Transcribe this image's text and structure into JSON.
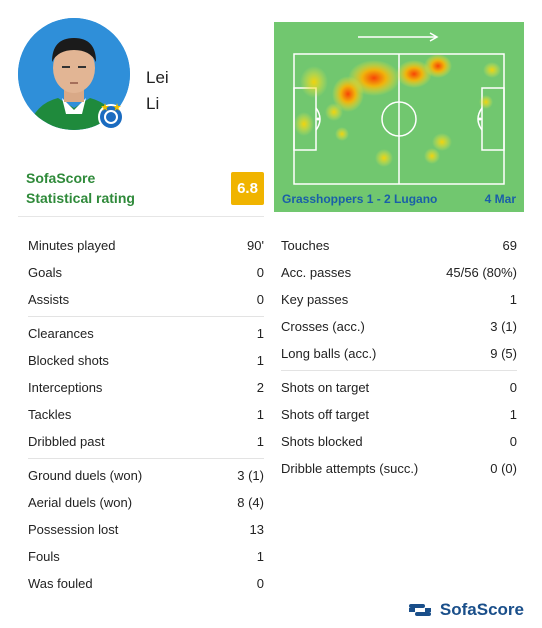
{
  "player": {
    "first_name": "Lei",
    "last_name": "Li"
  },
  "rating": {
    "brand": "SofaScore",
    "label": "Statistical rating",
    "value": "6.8",
    "color": "#f0b400"
  },
  "heatmap": {
    "match": "Grasshoppers 1 - 2 Lugano",
    "date": "4 Mar",
    "pitch_color": "#71c76f"
  },
  "stats_left": [
    [
      {
        "label": "Minutes played",
        "value": "90'"
      },
      {
        "label": "Goals",
        "value": "0"
      },
      {
        "label": "Assists",
        "value": "0"
      }
    ],
    [
      {
        "label": "Clearances",
        "value": "1"
      },
      {
        "label": "Blocked shots",
        "value": "1"
      },
      {
        "label": "Interceptions",
        "value": "2"
      },
      {
        "label": "Tackles",
        "value": "1"
      },
      {
        "label": "Dribbled past",
        "value": "1"
      }
    ],
    [
      {
        "label": "Ground duels (won)",
        "value": "3 (1)"
      },
      {
        "label": "Aerial duels (won)",
        "value": "8 (4)"
      },
      {
        "label": "Possession lost",
        "value": "13"
      },
      {
        "label": "Fouls",
        "value": "1"
      },
      {
        "label": "Was fouled",
        "value": "0"
      }
    ]
  ],
  "stats_right": [
    [
      {
        "label": "Touches",
        "value": "69"
      },
      {
        "label": "Acc. passes",
        "value": "45/56 (80%)"
      },
      {
        "label": "Key passes",
        "value": "1"
      },
      {
        "label": "Crosses (acc.)",
        "value": "3 (1)"
      },
      {
        "label": "Long balls (acc.)",
        "value": "9 (5)"
      }
    ],
    [
      {
        "label": "Shots on target",
        "value": "0"
      },
      {
        "label": "Shots off target",
        "value": "1"
      },
      {
        "label": "Shots blocked",
        "value": "0"
      },
      {
        "label": "Dribble attempts (succ.)",
        "value": "0 (0)"
      }
    ]
  ],
  "footer": {
    "logo_text": "SofaScore"
  }
}
